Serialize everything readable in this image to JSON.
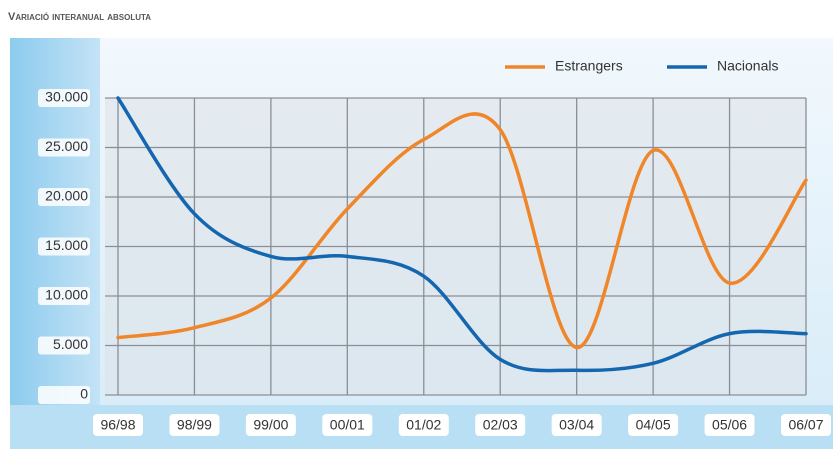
{
  "chart_data": {
    "type": "line",
    "title": "Variació interanual absoluta",
    "categories": [
      "96/98",
      "98/99",
      "99/00",
      "00/01",
      "01/02",
      "02/03",
      "03/04",
      "04/05",
      "05/06",
      "06/07"
    ],
    "series": [
      {
        "name": "Estrangers",
        "color": "#f0862a",
        "values": [
          5800,
          6800,
          9800,
          18800,
          25800,
          26800,
          4800,
          24700,
          11300,
          21700
        ]
      },
      {
        "name": "Nacionals",
        "color": "#1466b0",
        "values": [
          30000,
          18300,
          14000,
          14000,
          12000,
          3600,
          2500,
          3200,
          6200,
          6200
        ]
      }
    ],
    "ylim": [
      0,
      30000
    ],
    "yticks": [
      0,
      {
        "value": 5000,
        "label": "5.000"
      },
      {
        "value": 10000,
        "label": "10.000"
      },
      {
        "value": 15000,
        "label": "15.000"
      },
      {
        "value": 20000,
        "label": "20.000"
      },
      {
        "value": 25000,
        "label": "25.000"
      },
      {
        "value": 30000,
        "label": "30.000"
      }
    ],
    "grid": true,
    "legend": "top-right"
  }
}
